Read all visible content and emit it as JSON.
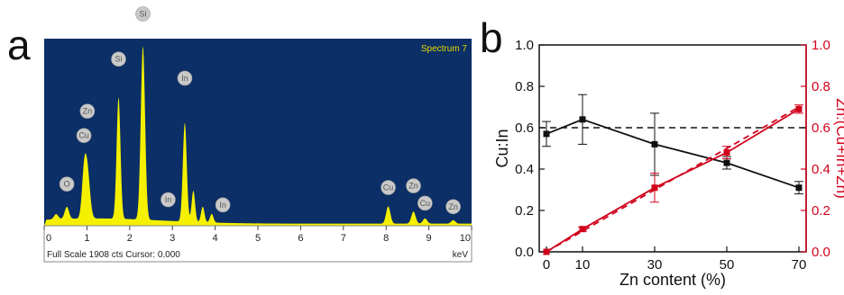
{
  "panels": {
    "a": "a",
    "b": "b"
  },
  "colors": {
    "eds_bg": "#0b2f66",
    "eds_fill": "#f5f000",
    "black_series": "#111111",
    "red_series": "#d0021b"
  },
  "chart_data": [
    {
      "type": "area",
      "title": "Spectrum 7",
      "xlabel": "keV",
      "footer": "Full Scale 1908 cts Cursor: 0.000",
      "xlim": [
        0,
        10
      ],
      "x_ticks": [
        "0",
        "1",
        "2",
        "3",
        "4",
        "5",
        "6",
        "7",
        "8",
        "9",
        "10"
      ],
      "peak_labels": [
        {
          "label": "O",
          "kev": 0.53,
          "rel": 0.24
        },
        {
          "label": "Cu",
          "kev": 0.93,
          "rel": 0.52
        },
        {
          "label": "Zn",
          "kev": 1.01,
          "rel": 0.66
        },
        {
          "label": "Si",
          "kev": 1.74,
          "rel": 0.96
        },
        {
          "label": "Si",
          "kev": 2.31,
          "rel": 1.22
        },
        {
          "label": "In",
          "kev": 2.9,
          "rel": 0.15
        },
        {
          "label": "In",
          "kev": 3.29,
          "rel": 0.85
        },
        {
          "label": "In",
          "kev": 4.18,
          "rel": 0.12
        },
        {
          "label": "Cu",
          "kev": 8.05,
          "rel": 0.22
        },
        {
          "label": "Zn",
          "kev": 8.64,
          "rel": 0.23
        },
        {
          "label": "Cu",
          "kev": 8.91,
          "rel": 0.13
        },
        {
          "label": "Zn",
          "kev": 9.57,
          "rel": 0.11
        }
      ],
      "spectrum": {
        "baseline": 0.03,
        "peaks": [
          {
            "kev": 0.28,
            "h": 0.03,
            "w": 0.05
          },
          {
            "kev": 0.53,
            "h": 0.07,
            "w": 0.05
          },
          {
            "kev": 0.93,
            "h": 0.22,
            "w": 0.05
          },
          {
            "kev": 1.01,
            "h": 0.27,
            "w": 0.06
          },
          {
            "kev": 1.74,
            "h": 0.7,
            "w": 0.045
          },
          {
            "kev": 2.31,
            "h": 1.0,
            "w": 0.05
          },
          {
            "kev": 3.29,
            "h": 0.57,
            "w": 0.045
          },
          {
            "kev": 3.49,
            "h": 0.18,
            "w": 0.04
          },
          {
            "kev": 3.71,
            "h": 0.09,
            "w": 0.04
          },
          {
            "kev": 3.92,
            "h": 0.05,
            "w": 0.04
          },
          {
            "kev": 8.05,
            "h": 0.1,
            "w": 0.05
          },
          {
            "kev": 8.64,
            "h": 0.07,
            "w": 0.05
          },
          {
            "kev": 8.91,
            "h": 0.03,
            "w": 0.05
          },
          {
            "kev": 9.57,
            "h": 0.02,
            "w": 0.05
          }
        ]
      }
    },
    {
      "type": "line",
      "xlabel": "Zn content (%)",
      "ylabel": "Cu:In",
      "y2label": "Zn:(Cu+In+Zn)",
      "xlim": [
        -2,
        72
      ],
      "ylim": [
        0,
        1.0
      ],
      "y2lim": [
        0,
        1.0
      ],
      "x_ticks": [
        0,
        10,
        30,
        50,
        70
      ],
      "y_ticks": [
        "0.0",
        "0.2",
        "0.4",
        "0.6",
        "0.8",
        "1.0"
      ],
      "y2_ticks": [
        "0.0",
        "0.2",
        "0.4",
        "0.6",
        "0.8",
        "1.0"
      ],
      "reference_line": {
        "y": 0.6,
        "style": "dashed"
      },
      "series": [
        {
          "axis": "left",
          "color": "#111111",
          "x": [
            0,
            10,
            30,
            50,
            70
          ],
          "y": [
            0.57,
            0.64,
            0.52,
            0.43,
            0.31
          ],
          "err": [
            0.06,
            0.12,
            0.15,
            0.03,
            0.03
          ]
        },
        {
          "axis": "right",
          "color": "#d0021b",
          "x": [
            0,
            10,
            30,
            50,
            70
          ],
          "y": [
            0.0,
            0.11,
            0.31,
            0.48,
            0.69
          ],
          "err": [
            0.0,
            0.01,
            0.07,
            0.03,
            0.02
          ]
        },
        {
          "axis": "right",
          "color": "#d0021b",
          "style": "dashed",
          "x": [
            0,
            70
          ],
          "y": [
            0.0,
            0.7
          ]
        }
      ]
    }
  ]
}
